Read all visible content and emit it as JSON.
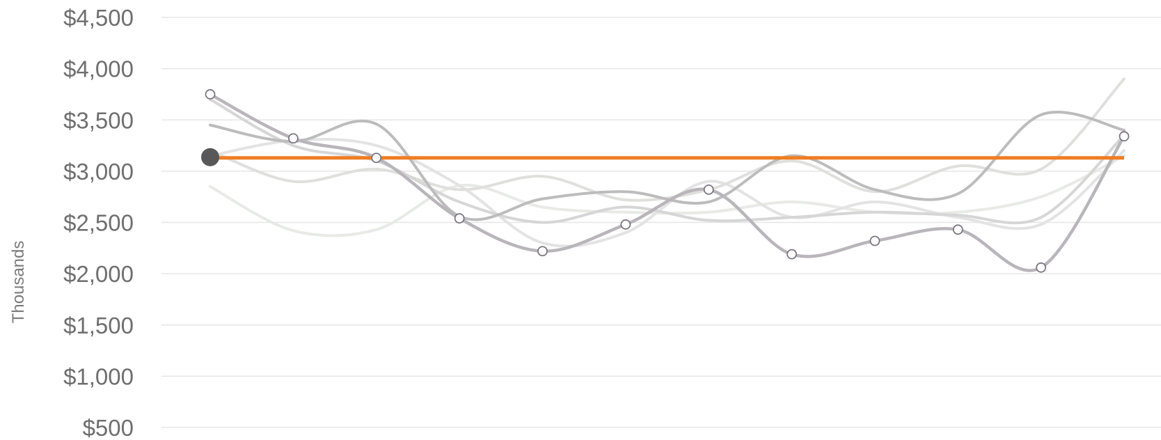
{
  "chart_data": {
    "type": "line",
    "title": "",
    "xlabel": "",
    "ylabel": "Thousands",
    "ylim": [
      500,
      4500
    ],
    "yticks": [
      500,
      1000,
      1500,
      2000,
      2500,
      3000,
      3500,
      4000,
      4500
    ],
    "ytick_labels": [
      "$500",
      "$1,000",
      "$1,500",
      "$2,000",
      "$2,500",
      "$3,000",
      "$3,500",
      "$4,000",
      "$4,500"
    ],
    "x": [
      1,
      2,
      3,
      4,
      5,
      6,
      7,
      8,
      9,
      10,
      11,
      12
    ],
    "grid": "horizontal",
    "legend": "none",
    "series": [
      {
        "values": [
          3750,
          3320,
          3130,
          2540,
          2220,
          2480,
          2820,
          2190,
          2320,
          2430,
          2060,
          3340
        ],
        "role": "highlighted",
        "markers": "open-circle"
      },
      {
        "values": [
          3450,
          3290,
          3460,
          2560,
          2730,
          2800,
          2700,
          3150,
          2820,
          2780,
          3550,
          3400
        ],
        "role": "background"
      },
      {
        "values": [
          3700,
          3250,
          3100,
          2700,
          2500,
          2650,
          2520,
          2550,
          2600,
          2570,
          2550,
          3350
        ],
        "role": "background"
      },
      {
        "values": [
          3200,
          2900,
          3020,
          2820,
          2950,
          2720,
          2820,
          3100,
          2800,
          3050,
          3020,
          3900
        ],
        "role": "background"
      },
      {
        "values": [
          3150,
          3300,
          3250,
          2860,
          2300,
          2400,
          2900,
          2550,
          2700,
          2550,
          2480,
          3200
        ],
        "role": "background"
      },
      {
        "values": [
          2850,
          2420,
          2430,
          2860,
          2650,
          2600,
          2600,
          2700,
          2600,
          2600,
          2750,
          3150
        ],
        "role": "background"
      }
    ],
    "reference_line": {
      "value": 3130
    },
    "colors": {
      "highlight": "#b9b5bb",
      "background": [
        "#bcbcbc",
        "#d6d6d6",
        "#dfe0dc",
        "#e3e3e3",
        "#e8eae5"
      ],
      "reference": "#f07d22",
      "reference_marker": "#58585a",
      "marker_fill": "#ffffff",
      "marker_stroke": "#7a7580",
      "grid": "#e6e6e6",
      "tick_text": "#6e6e6e"
    }
  }
}
